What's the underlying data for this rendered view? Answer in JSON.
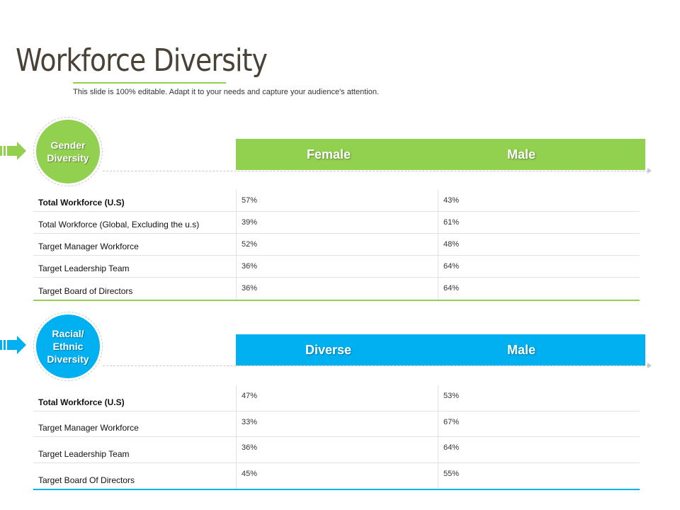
{
  "title": "Workforce Diversity",
  "subtitle": "This slide is 100% editable. Adapt it to your needs and capture your audience's attention.",
  "colors": {
    "green": "#92d050",
    "blue": "#00b0f0",
    "title": "#4a4236"
  },
  "gender": {
    "badge": "Gender\nDiversity",
    "headers": [
      "Female",
      "Male"
    ],
    "rows": [
      {
        "label": "Total Workforce (U.S)",
        "v1": "57%",
        "v2": "43%"
      },
      {
        "label": "Total Workforce (Global, Excluding the u.s)",
        "v1": "39%",
        "v2": "61%"
      },
      {
        "label": "Target Manager Workforce",
        "v1": "52%",
        "v2": "48%"
      },
      {
        "label": "Target Leadership Team",
        "v1": "36%",
        "v2": "64%"
      },
      {
        "label": "Target Board of Directors",
        "v1": "36%",
        "v2": "64%"
      }
    ]
  },
  "racial": {
    "badge": "Racial/\nEthnic\nDiversity",
    "headers": [
      "Diverse",
      "Male"
    ],
    "rows": [
      {
        "label": "Total Workforce (U.S)",
        "v1": "47%",
        "v2": "53%"
      },
      {
        "label": "Target Manager Workforce",
        "v1": "33%",
        "v2": "67%"
      },
      {
        "label": "Target Leadership Team",
        "v1": "36%",
        "v2": "64%"
      },
      {
        "label": "Target Board Of Directors",
        "v1": "45%",
        "v2": "55%"
      }
    ]
  }
}
